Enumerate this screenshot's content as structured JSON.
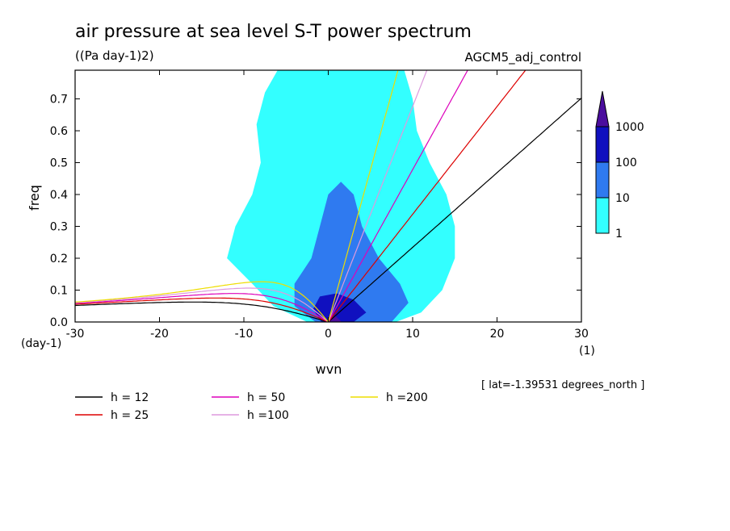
{
  "chart_data": {
    "type": "heatmap",
    "title": "air pressure at sea level S-T power spectrum",
    "units": "((Pa day-1)2)",
    "experiment": "AGCM5_adj_control",
    "xlabel": "wvn",
    "ylabel": "freq",
    "x_unit": "(1)",
    "y_unit": "(day-1)",
    "xlim": [
      -30,
      30
    ],
    "ylim": [
      0,
      0.79
    ],
    "x_ticks": [
      "-30",
      "-20",
      "-10",
      "0",
      "10",
      "20",
      "30"
    ],
    "x_tick_values": [
      -30,
      -20,
      -10,
      0,
      10,
      20,
      30
    ],
    "y_ticks": [
      "0.0",
      "0.1",
      "0.2",
      "0.3",
      "0.4",
      "0.5",
      "0.6",
      "0.7"
    ],
    "y_tick_values": [
      0,
      0.1,
      0.2,
      0.3,
      0.4,
      0.5,
      0.6,
      0.7
    ],
    "annotation": "[ lat=-1.39531 degrees_north ]",
    "colorbar": {
      "levels": [
        "1",
        "10",
        "100",
        "1000"
      ],
      "colors": [
        "#33ffff",
        "#2f7af0",
        "#1010bf",
        "#4b0d9e"
      ]
    },
    "power_regions": [
      {
        "level": 1,
        "color": "#33ffff",
        "points": [
          [
            -2.5,
            0.0
          ],
          [
            -6.5,
            0.05
          ],
          [
            -9,
            0.12
          ],
          [
            -12,
            0.2
          ],
          [
            -11,
            0.3
          ],
          [
            -9,
            0.4
          ],
          [
            -8,
            0.5
          ],
          [
            -8.5,
            0.62
          ],
          [
            -7.5,
            0.72
          ],
          [
            -6,
            0.79
          ],
          [
            9,
            0.79
          ],
          [
            10,
            0.7
          ],
          [
            10.5,
            0.6
          ],
          [
            12,
            0.5
          ],
          [
            14,
            0.4
          ],
          [
            15,
            0.3
          ],
          [
            15,
            0.2
          ],
          [
            13.5,
            0.1
          ],
          [
            11,
            0.03
          ],
          [
            8,
            0.0
          ]
        ]
      },
      {
        "level": 10,
        "color": "#2f7af0",
        "points": [
          [
            -1.5,
            0.0
          ],
          [
            -4,
            0.05
          ],
          [
            -4,
            0.12
          ],
          [
            -2,
            0.2
          ],
          [
            -1,
            0.3
          ],
          [
            0,
            0.4
          ],
          [
            1.5,
            0.44
          ],
          [
            3,
            0.4
          ],
          [
            4,
            0.3
          ],
          [
            6,
            0.2
          ],
          [
            8.5,
            0.12
          ],
          [
            9.5,
            0.06
          ],
          [
            7.5,
            0.0
          ]
        ]
      },
      {
        "level": 100,
        "color": "#1010bf",
        "points": [
          [
            -0.8,
            0.0
          ],
          [
            -1.8,
            0.04
          ],
          [
            -1,
            0.08
          ],
          [
            1,
            0.09
          ],
          [
            3,
            0.07
          ],
          [
            4.5,
            0.03
          ],
          [
            3,
            0.0
          ]
        ]
      },
      {
        "level": 1000,
        "color": "#4b0d9e",
        "points": [
          [
            -0.1,
            0.0
          ],
          [
            0.8,
            0.02
          ],
          [
            1.6,
            0.0
          ]
        ]
      }
    ],
    "dispersion_curves": [
      {
        "name": "h = 12",
        "h": 12,
        "color": "#000000"
      },
      {
        "name": "h = 25",
        "h": 25,
        "color": "#dd0000"
      },
      {
        "name": "h = 50",
        "h": 50,
        "color": "#dd00bb"
      },
      {
        "name": "h =100",
        "h": 100,
        "color": "#dd99dd"
      },
      {
        "name": "h =200",
        "h": 200,
        "color": "#eedd00"
      }
    ]
  }
}
